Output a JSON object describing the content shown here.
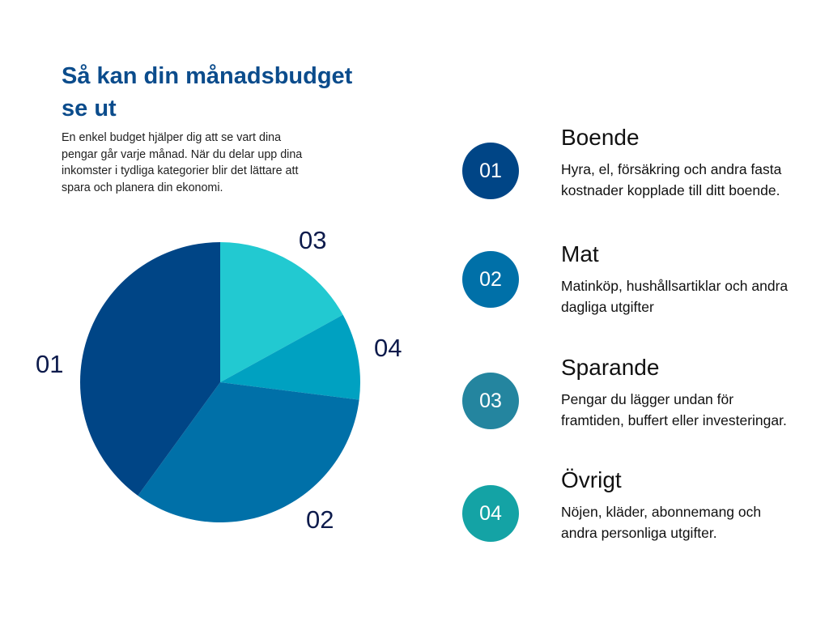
{
  "header": {
    "title": "Så kan din månadsbudget se ut",
    "intro": "En enkel budget hjälper dig att se vart dina pengar går varje månad. När du delar upp dina inkomster i tydliga kategorier blir det lättare att spara och planera din ekonomi."
  },
  "chart_data": {
    "type": "pie",
    "categories": [
      "01",
      "02",
      "03",
      "04"
    ],
    "values": [
      40,
      33,
      17,
      10
    ],
    "colors": [
      "#004586",
      "#0070a8",
      "#22c9d1",
      "#00a1c1"
    ],
    "labels": [
      "01",
      "02",
      "03",
      "04"
    ]
  },
  "legend": {
    "items": [
      {
        "number": "01",
        "title": "Boende",
        "description": "Hyra, el, försäkring och andra fasta kostnader kopplade till ditt boende.",
        "color": "#004586"
      },
      {
        "number": "02",
        "title": "Mat",
        "description": "Matinköp, hushållsartiklar och andra dagliga utgifter",
        "color": "#0070a8"
      },
      {
        "number": "03",
        "title": "Sparande",
        "description": "Pengar du lägger undan för framtiden, buffert eller investeringar.",
        "color": "#24859f"
      },
      {
        "number": "04",
        "title": "Övrigt",
        "description": "Nöjen, kläder, abonnemang och andra personliga utgifter.",
        "color": "#14a3a5"
      }
    ]
  }
}
